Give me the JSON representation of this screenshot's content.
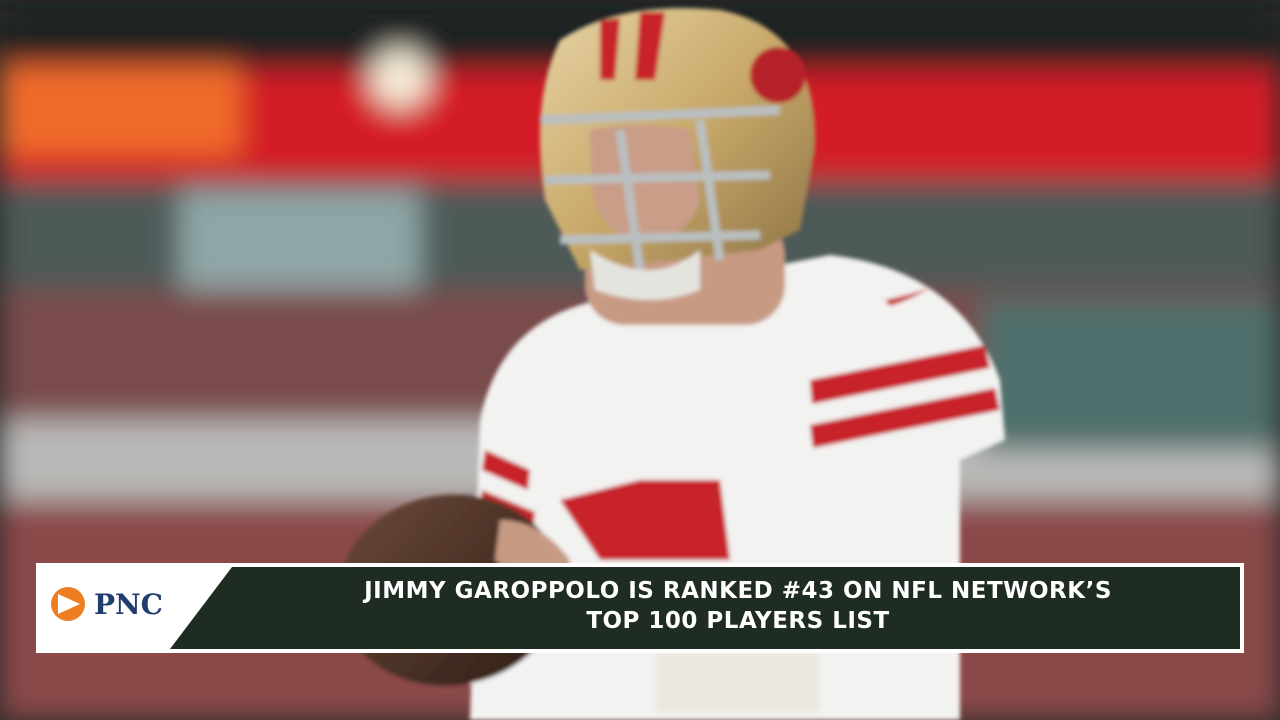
{
  "banner": {
    "logo_text": "PNC",
    "headline_lines": [
      "JIMMY GAROPPOLO IS RANKED #43 ON NFL NETWORK’S",
      "TOP 100 PLAYERS LIST"
    ]
  }
}
